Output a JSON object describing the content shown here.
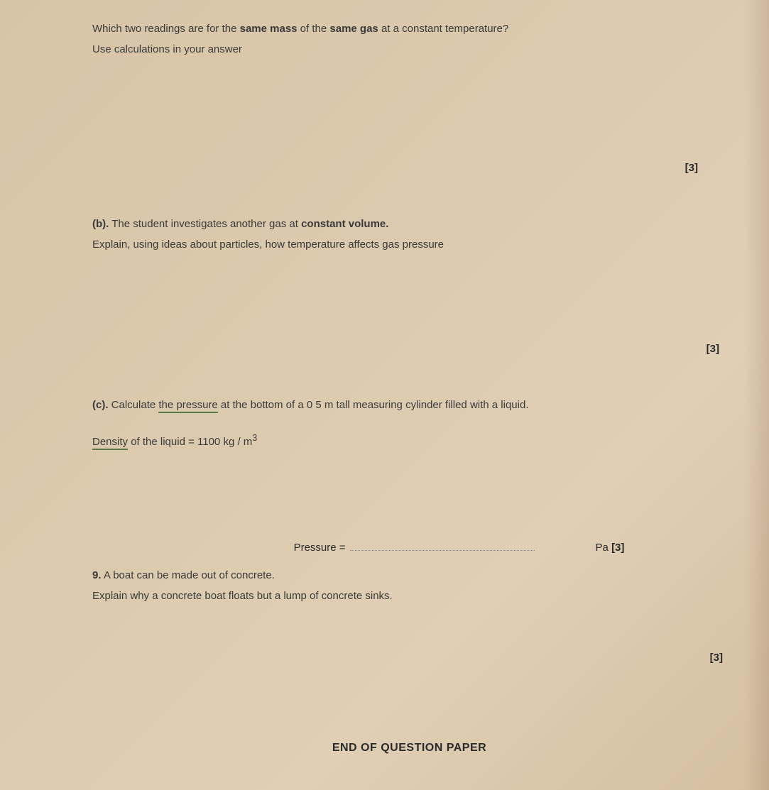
{
  "q_top": {
    "line1_a": "Which two readings are for the ",
    "line1_b": "same mass",
    "line1_c": " of the ",
    "line1_d": "same gas",
    "line1_e": " at a constant temperature?",
    "line2": "Use calculations in your answer",
    "marks": "[3]"
  },
  "part_b": {
    "label": "(b).",
    "text_a": " The student investigates another gas at ",
    "text_b": "constant volume.",
    "line2": "Explain, using ideas about particles, how temperature affects gas pressure",
    "marks": "[3]"
  },
  "part_c": {
    "label": "(c).",
    "text_a": " Calculate ",
    "text_b": "the pressure",
    "text_c": " at the bottom of a 0 5 m tall measuring cylinder filled with a liquid.",
    "density_a": "Density",
    "density_b": " of the liquid = 1100 kg / m",
    "density_sup": "3",
    "answer_label": "Pressure =",
    "unit": "Pa",
    "marks": "[3]"
  },
  "q9": {
    "label": "9.",
    "line1": " A boat can be made out of concrete.",
    "line2": "Explain why a concrete boat floats but a lump of concrete sinks.",
    "marks": "[3]"
  },
  "footer": "END OF QUESTION PAPER"
}
